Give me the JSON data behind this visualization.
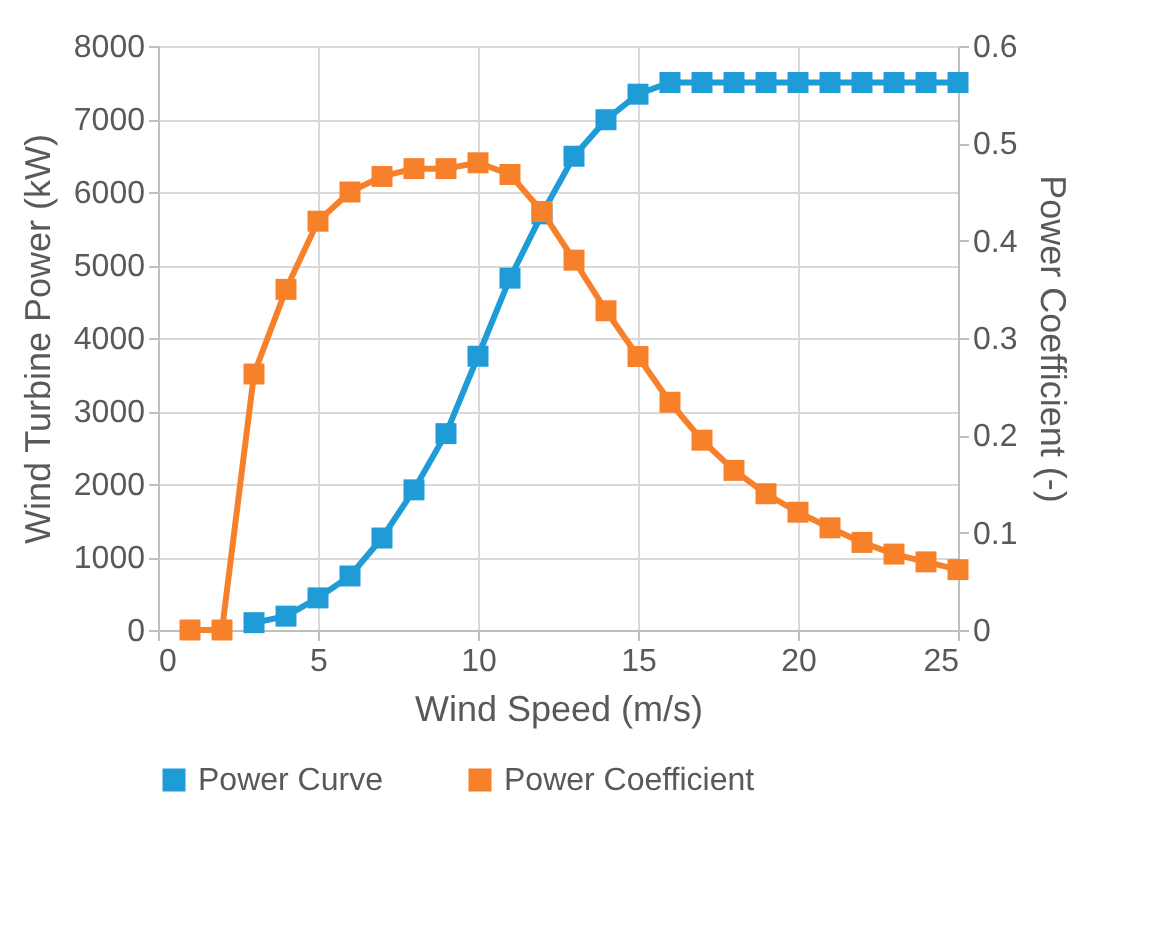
{
  "chart_data": {
    "type": "line",
    "xlabel": "Wind Speed (m/s)",
    "ylabel": "Wind Turbine Power (kW)",
    "y2label": "Power Coefficient (-)",
    "xlim": [
      0,
      25
    ],
    "xticks": [
      0,
      5,
      10,
      15,
      20,
      25
    ],
    "ylim": [
      0,
      8000
    ],
    "yticks": [
      0,
      1000,
      2000,
      3000,
      4000,
      5000,
      6000,
      7000,
      8000
    ],
    "y2lim": [
      0,
      0.6
    ],
    "y2ticks": [
      0,
      0.1,
      0.2,
      0.3,
      0.4,
      0.5,
      0.6
    ],
    "grid": true,
    "legend": "bottom",
    "marker": "square",
    "line_style": "solid",
    "series": [
      {
        "name": "Power Curve",
        "color": "#1f9bd7",
        "x": [
          3,
          4,
          5,
          6,
          7,
          8,
          9,
          10,
          11,
          12,
          13,
          14,
          15,
          16,
          17,
          18,
          19,
          20,
          21,
          22,
          23,
          24,
          25
        ],
        "values": [
          100,
          190,
          440,
          740,
          1260,
          1920,
          2690,
          3750,
          4820,
          5700,
          6490,
          6990,
          7340,
          7500,
          7500,
          7500,
          7500,
          7500,
          7500,
          7500,
          7500,
          7500,
          7500
        ]
      },
      {
        "name": "Power Coefficient",
        "color": "#f7802a",
        "axis": "y2",
        "x": [
          1,
          2,
          3,
          4,
          5,
          6,
          7,
          8,
          9,
          10,
          11,
          12,
          13,
          14,
          15,
          16,
          17,
          18,
          19,
          20,
          21,
          22,
          23,
          24,
          25
        ],
        "values": [
          0,
          0,
          0.263,
          0.35,
          0.42,
          0.45,
          0.466,
          0.474,
          0.474,
          0.48,
          0.468,
          0.43,
          0.38,
          0.328,
          0.281,
          0.234,
          0.195,
          0.164,
          0.14,
          0.121,
          0.105,
          0.09,
          0.078,
          0.07,
          0.062
        ]
      }
    ]
  }
}
